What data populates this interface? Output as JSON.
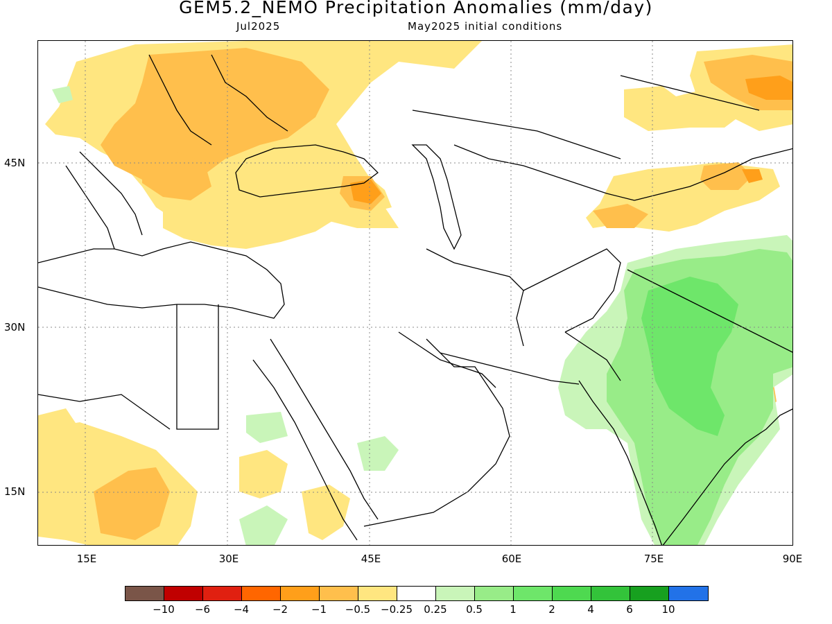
{
  "title": "GEM5.2_NEMO Precipitation Anomalies (mm/day)",
  "subtitle_left": "Jul2025",
  "subtitle_right": "May2025 initial conditions",
  "lat_labels": [
    "45N",
    "30N",
    "15N"
  ],
  "lon_labels": [
    "15E",
    "30E",
    "45E",
    "60E",
    "75E",
    "90E"
  ],
  "colorbar": {
    "colors": [
      "#7a5548",
      "#c00000",
      "#e02010",
      "#ff6600",
      "#ff9f1a",
      "#ffbf4c",
      "#ffe680",
      "#ffffff",
      "#c9f5b9",
      "#98ec88",
      "#6ee66a",
      "#4ed950",
      "#33c33a",
      "#17a01f",
      "#2272e8"
    ],
    "labels": [
      "-10",
      "-6",
      "-4",
      "-2",
      "-1",
      "-0.5",
      "-0.25",
      "0.25",
      "0.5",
      "1",
      "2",
      "4",
      "6",
      "10"
    ]
  },
  "map_extent": {
    "lon": [
      10,
      90
    ],
    "lat": [
      10,
      56
    ]
  },
  "anomaly_regions": [
    {
      "name": "eastern-europe-dry",
      "level": "-0.5 to -1"
    },
    {
      "name": "black-sea-caucasus-dry",
      "level": "-1 to -2"
    },
    {
      "name": "northeast-asia-dry",
      "level": "-1 to -2"
    },
    {
      "name": "east-india-dry",
      "level": "-1 to -2"
    },
    {
      "name": "india-wet",
      "level": "1 to 2"
    },
    {
      "name": "north-africa-sahel-dry",
      "level": "-0.5 to -1"
    }
  ]
}
